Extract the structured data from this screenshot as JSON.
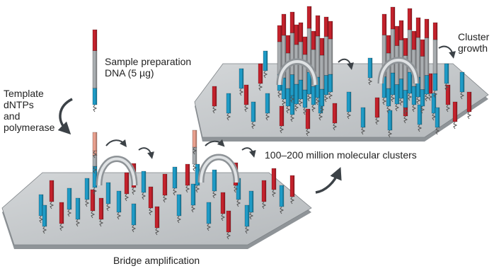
{
  "labels": {
    "sample_prep_line1": "Sample preparation",
    "sample_prep_line2": "DNA (5 µg)",
    "template_line1": "Template",
    "template_line2": "dNTPs",
    "template_line3": "and",
    "template_line4": "polymerase",
    "bridge_amplification": "Bridge amplification",
    "clusters": "100–200 million molecular clusters",
    "cluster_line1": "Cluster",
    "cluster_line2": "growth"
  },
  "colors": {
    "red_strand": "#c4222c",
    "blue_strand": "#1f9bc6",
    "grey_strand": "#a9adb0",
    "pink_strand": "#e8a08e",
    "plate_top": "#c3c7ca",
    "plate_edge": "#8f9498",
    "arrow": "#3c4247"
  }
}
